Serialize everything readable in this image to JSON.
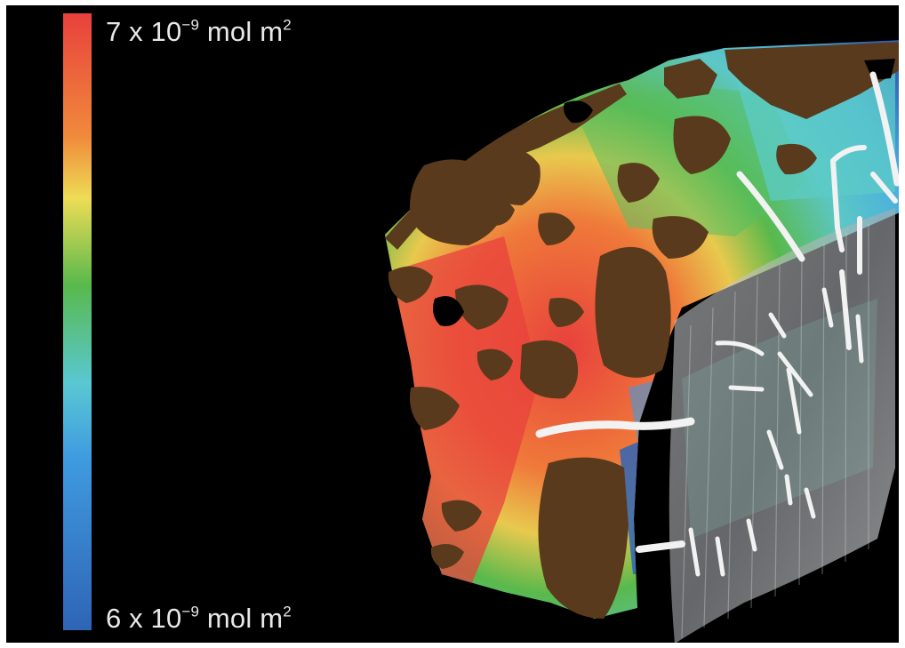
{
  "colorbar": {
    "max": {
      "coef": "7",
      "x": "x",
      "base": "10",
      "exp": "−9",
      "unit": "mol m",
      "unit_exp": "2"
    },
    "min": {
      "coef": "6",
      "x": "x",
      "base": "10",
      "exp": "−9",
      "unit": "mol m",
      "unit_exp": "2"
    },
    "colors": [
      "#e8413c",
      "#f08a3c",
      "#eedc55",
      "#59b94c",
      "#59c8d2",
      "#3f9be0",
      "#2f64b6"
    ]
  },
  "scene": {
    "rock_color": "#5a3a1c",
    "pathway_color": "#f2f2f2",
    "mesh_color": "#b4b8bc"
  }
}
